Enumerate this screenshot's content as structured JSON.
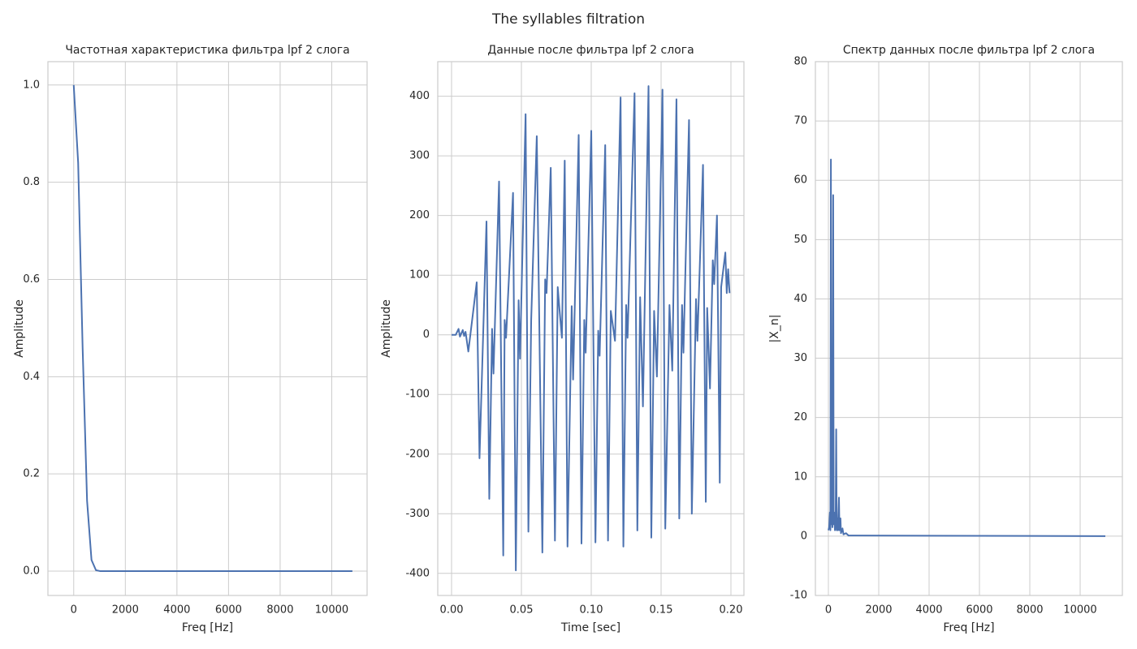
{
  "title": "The syllables filtration",
  "chart_data": [
    {
      "type": "line",
      "title": "Частотная характеристика фильтра lpf 2 слога",
      "xlabel": "Freq [Hz]",
      "ylabel": "Amplitude",
      "color": "#4c72b0",
      "grid": true,
      "x": [
        0,
        172,
        345,
        517,
        689,
        862,
        1034,
        10800
      ],
      "values": [
        1.0,
        0.84,
        0.46,
        0.145,
        0.023,
        0.002,
        0,
        0
      ],
      "xlim": [
        -1000,
        11370
      ],
      "xticks": [
        0,
        2000,
        4000,
        6000,
        8000,
        10000
      ],
      "ylim": [
        -0.05,
        1.048
      ],
      "yticks": [
        {
          "value": 0,
          "label": "0.0"
        },
        {
          "value": 0.2,
          "label": "0.2"
        },
        {
          "value": 0.4,
          "label": "0.4"
        },
        {
          "value": 0.6,
          "label": "0.6"
        },
        {
          "value": 0.8,
          "label": "0.8"
        },
        {
          "value": 1.0,
          "label": "1.0"
        }
      ]
    },
    {
      "type": "line",
      "title": "Данные после фильтра lpf 2 слога",
      "xlabel": "Time [sec]",
      "ylabel": "Amplitude",
      "color": "#4c72b0",
      "grid": true,
      "x": [
        0,
        0.003,
        0.005,
        0.006,
        0.008,
        0.009,
        0.01,
        0.012,
        0.018,
        0.02,
        0.025,
        0.027,
        0.029,
        0.03,
        0.034,
        0.037,
        0.038,
        0.039,
        0.044,
        0.046,
        0.048,
        0.049,
        0.053,
        0.055,
        0.057,
        0.061,
        0.065,
        0.067,
        0.068,
        0.071,
        0.074,
        0.076,
        0.077,
        0.079,
        0.081,
        0.083,
        0.086,
        0.087,
        0.091,
        0.093,
        0.095,
        0.096,
        0.1,
        0.103,
        0.105,
        0.106,
        0.11,
        0.112,
        0.114,
        0.117,
        0.121,
        0.123,
        0.125,
        0.126,
        0.131,
        0.133,
        0.135,
        0.137,
        0.141,
        0.143,
        0.145,
        0.147,
        0.151,
        0.153,
        0.156,
        0.158,
        0.161,
        0.163,
        0.165,
        0.166,
        0.17,
        0.172,
        0.175,
        0.176,
        0.18,
        0.182,
        0.183,
        0.185,
        0.187,
        0.188,
        0.19,
        0.192,
        0.193,
        0.196,
        0.197,
        0.198,
        0.199
      ],
      "values": [
        0,
        0,
        10,
        -3,
        8,
        -2,
        5,
        -28,
        88,
        -207,
        190,
        -275,
        10,
        -65,
        257,
        -370,
        25,
        -5,
        238,
        -395,
        58,
        -40,
        370,
        -330,
        25,
        333,
        -365,
        93,
        70,
        280,
        -345,
        80,
        50,
        -5,
        292,
        -355,
        48,
        -75,
        335,
        -350,
        25,
        -30,
        342,
        -348,
        7,
        -35,
        318,
        -345,
        40,
        -10,
        398,
        -355,
        50,
        -5,
        405,
        -328,
        63,
        -120,
        417,
        -340,
        40,
        -70,
        411,
        -325,
        50,
        -60,
        395,
        -308,
        50,
        -30,
        360,
        -300,
        60,
        -10,
        285,
        -280,
        45,
        -90,
        125,
        85,
        200,
        -248,
        80,
        138,
        70,
        110,
        70
      ],
      "xlim": [
        -0.0099,
        0.2093
      ],
      "xticks": [
        {
          "value": 0,
          "label": "0.00"
        },
        {
          "value": 0.05,
          "label": "0.05"
        },
        {
          "value": 0.1,
          "label": "0.10"
        },
        {
          "value": 0.15,
          "label": "0.15"
        },
        {
          "value": 0.2,
          "label": "0.20"
        }
      ],
      "ylim": [
        -437,
        458
      ],
      "yticks": [
        -400,
        -300,
        -200,
        -100,
        0,
        100,
        200,
        300,
        400
      ]
    },
    {
      "type": "line",
      "title": "Спектр данных после фильтра lpf 2 слога",
      "xlabel": "Freq [Hz]",
      "ylabel": "|X_n|",
      "color": "#4c72b0",
      "grid": true,
      "x": [
        0,
        30,
        60,
        80,
        100,
        120,
        140,
        160,
        190,
        210,
        230,
        260,
        290,
        310,
        330,
        360,
        380,
        420,
        440,
        480,
        500,
        560,
        600,
        700,
        800,
        1000,
        11000
      ],
      "values": [
        1,
        1.5,
        4,
        1,
        63.5,
        2,
        4,
        1.5,
        57.5,
        2,
        4,
        1,
        3,
        18,
        1,
        3,
        1,
        6.5,
        1,
        3,
        0.5,
        1.3,
        0.3,
        0.5,
        0.1,
        0.1,
        0
      ],
      "xlim": [
        -516,
        11677
      ],
      "xticks": [
        0,
        2000,
        4000,
        6000,
        8000,
        10000
      ],
      "ylim": [
        -10,
        80
      ],
      "yticks": [
        -10,
        0,
        10,
        20,
        30,
        40,
        50,
        60,
        70,
        80
      ]
    }
  ]
}
